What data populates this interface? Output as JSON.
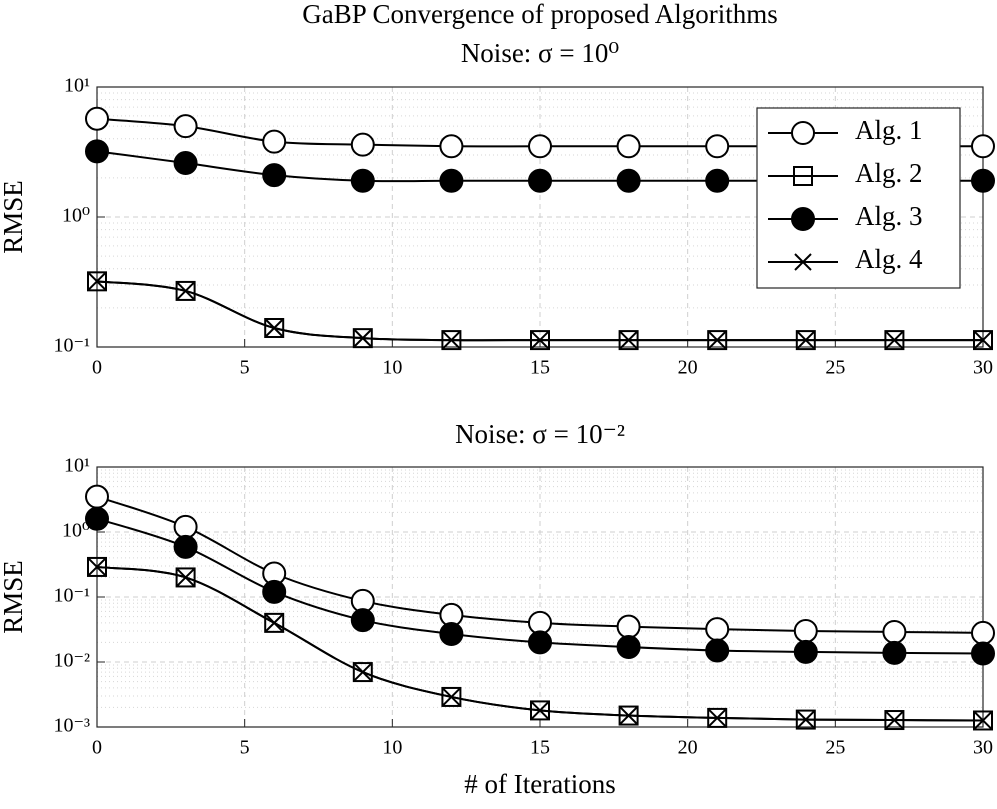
{
  "chart_data": [
    {
      "type": "line",
      "title": "GaBP Convergence of proposed Algorithms",
      "subtitle": "Noise: σ = 10⁰",
      "ylabel": "RMSE",
      "x": [
        0,
        3,
        6,
        9,
        12,
        15,
        18,
        21,
        24,
        27,
        30
      ],
      "series": [
        {
          "name": "Alg. 1",
          "color": "#000000",
          "marker": "circle",
          "values": [
            5.7,
            5.0,
            3.8,
            3.6,
            3.5,
            3.5,
            3.5,
            3.5,
            3.5,
            3.5,
            3.5
          ]
        },
        {
          "name": "Alg. 2",
          "color": "#000000",
          "marker": "square",
          "values": [
            0.32,
            0.27,
            0.14,
            0.117,
            0.113,
            0.113,
            0.113,
            0.113,
            0.113,
            0.113,
            0.113
          ]
        },
        {
          "name": "Alg. 3",
          "color": "#000000",
          "marker": "filled-circle",
          "values": [
            3.2,
            2.6,
            2.1,
            1.9,
            1.9,
            1.9,
            1.9,
            1.9,
            1.9,
            1.9,
            1.9
          ]
        },
        {
          "name": "Alg. 4",
          "color": "#000000",
          "marker": "x",
          "values": [
            0.32,
            0.27,
            0.14,
            0.117,
            0.113,
            0.113,
            0.113,
            0.113,
            0.113,
            0.113,
            0.113
          ]
        }
      ],
      "xlim": [
        0,
        30
      ],
      "xticks": [
        0,
        5,
        10,
        15,
        20,
        25,
        30
      ],
      "ylim": [
        0.1,
        10
      ],
      "yticks": [
        {
          "value": 0.1,
          "label": "10⁻¹"
        },
        {
          "value": 1,
          "label": "10⁰"
        },
        {
          "value": 10,
          "label": "10¹"
        }
      ],
      "log_y": true,
      "grid": true,
      "minor_grid": true,
      "legend": "upper right"
    },
    {
      "type": "line",
      "title": "Noise: σ = 10⁻²",
      "xlabel": "# of Iterations",
      "ylabel": "RMSE",
      "x": [
        0,
        3,
        6,
        9,
        12,
        15,
        18,
        21,
        24,
        27,
        30
      ],
      "series": [
        {
          "color": "#000000",
          "marker": "circle",
          "values": [
            3.5,
            1.2,
            0.23,
            0.087,
            0.053,
            0.04,
            0.035,
            0.032,
            0.03,
            0.029,
            0.028
          ]
        },
        {
          "color": "#000000",
          "marker": "square",
          "values": [
            0.29,
            0.2,
            0.04,
            0.007,
            0.0029,
            0.0018,
            0.0015,
            0.00138,
            0.0013,
            0.00128,
            0.00126
          ]
        },
        {
          "color": "#000000",
          "marker": "filled-circle",
          "values": [
            1.6,
            0.59,
            0.12,
            0.044,
            0.027,
            0.02,
            0.017,
            0.015,
            0.0143,
            0.0138,
            0.0135
          ]
        },
        {
          "color": "#000000",
          "marker": "x",
          "values": [
            0.29,
            0.2,
            0.04,
            0.007,
            0.0029,
            0.0018,
            0.0015,
            0.00138,
            0.0013,
            0.00128,
            0.00126
          ]
        }
      ],
      "xlim": [
        0,
        30
      ],
      "xticks": [
        0,
        5,
        10,
        15,
        20,
        25,
        30
      ],
      "ylim": [
        0.001,
        10
      ],
      "yticks": [
        {
          "value": 0.001,
          "label": "10⁻³"
        },
        {
          "value": 0.01,
          "label": "10⁻²"
        },
        {
          "value": 0.1,
          "label": "10⁻¹"
        },
        {
          "value": 1,
          "label": "10⁰"
        },
        {
          "value": 10,
          "label": "10¹"
        }
      ],
      "log_y": true,
      "grid": true,
      "minor_grid": true
    }
  ]
}
